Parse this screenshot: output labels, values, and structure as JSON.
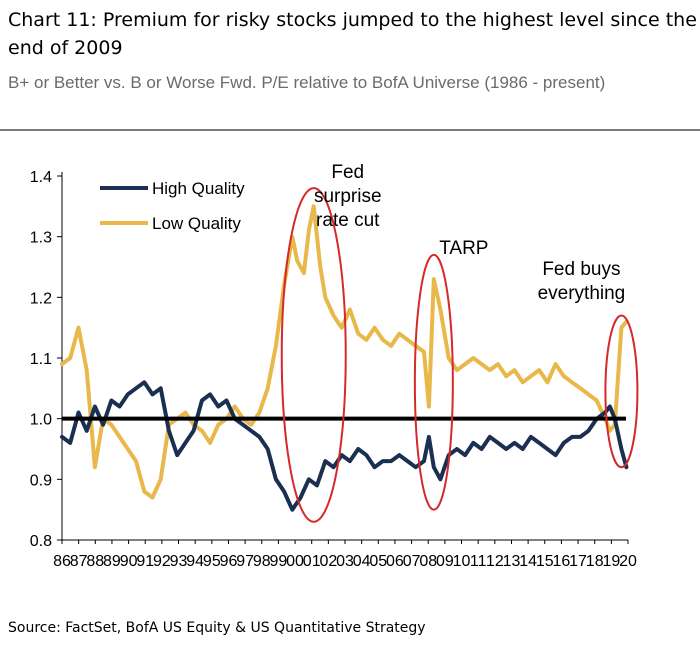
{
  "header": {
    "title": "Chart 11: Premium for risky stocks jumped to the highest level since the end of 2009",
    "subtitle": "B+ or Better vs. B or Worse Fwd. P/E relative to BofA Universe (1986 - present)"
  },
  "footer": {
    "source": "Source: FactSet, BofA US Equity & US Quantitative Strategy"
  },
  "colors": {
    "high_quality": "#1b2f52",
    "low_quality": "#e8b84a",
    "reference_line": "#000000",
    "highlight": "#d42a2a"
  },
  "chart_data": {
    "type": "line",
    "xlabel": "",
    "ylabel": "",
    "ylim": [
      0.8,
      1.4
    ],
    "yticks": [
      "0.8",
      "0.9",
      "1.0",
      "1.1",
      "1.2",
      "1.3",
      "1.4"
    ],
    "x_tick_labels": [
      "86",
      "87",
      "88",
      "89",
      "90",
      "91",
      "92",
      "93",
      "94",
      "95",
      "96",
      "97",
      "98",
      "99",
      "00",
      "01",
      "02",
      "03",
      "04",
      "05",
      "06",
      "07",
      "08",
      "09",
      "10",
      "11",
      "12",
      "13",
      "14",
      "15",
      "16",
      "17",
      "18",
      "19",
      "20"
    ],
    "legend_position": "top-left",
    "reference_line": 1.0,
    "series": [
      {
        "name": "High Quality",
        "x": [
          1986.0,
          1986.5,
          1987.0,
          1987.5,
          1988.0,
          1988.5,
          1989.0,
          1989.5,
          1990.0,
          1990.5,
          1991.0,
          1991.5,
          1992.0,
          1992.5,
          1993.0,
          1993.5,
          1994.0,
          1994.5,
          1995.0,
          1995.5,
          1996.0,
          1996.5,
          1997.0,
          1997.5,
          1998.0,
          1998.5,
          1999.0,
          1999.5,
          2000.0,
          2000.5,
          2001.0,
          2001.5,
          2002.0,
          2002.5,
          2003.0,
          2003.5,
          2004.0,
          2004.5,
          2005.0,
          2005.5,
          2006.0,
          2006.5,
          2007.0,
          2007.5,
          2008.0,
          2008.3,
          2008.6,
          2009.0,
          2009.5,
          2010.0,
          2010.5,
          2011.0,
          2011.5,
          2012.0,
          2012.5,
          2013.0,
          2013.5,
          2014.0,
          2014.5,
          2015.0,
          2015.5,
          2016.0,
          2016.5,
          2017.0,
          2017.5,
          2018.0,
          2018.5,
          2019.0,
          2019.3,
          2019.6,
          2020.0,
          2020.3
        ],
        "values": [
          0.97,
          0.96,
          1.01,
          0.98,
          1.02,
          0.99,
          1.03,
          1.02,
          1.04,
          1.05,
          1.06,
          1.04,
          1.05,
          0.98,
          0.94,
          0.96,
          0.98,
          1.03,
          1.04,
          1.02,
          1.03,
          1.0,
          0.99,
          0.98,
          0.97,
          0.95,
          0.9,
          0.88,
          0.85,
          0.87,
          0.9,
          0.89,
          0.93,
          0.92,
          0.94,
          0.93,
          0.95,
          0.94,
          0.92,
          0.93,
          0.93,
          0.94,
          0.93,
          0.92,
          0.93,
          0.97,
          0.92,
          0.9,
          0.94,
          0.95,
          0.94,
          0.96,
          0.95,
          0.97,
          0.96,
          0.95,
          0.96,
          0.95,
          0.97,
          0.96,
          0.95,
          0.94,
          0.96,
          0.97,
          0.97,
          0.98,
          1.0,
          1.01,
          1.02,
          1.0,
          0.95,
          0.92
        ]
      },
      {
        "name": "Low Quality",
        "x": [
          1986.0,
          1986.5,
          1987.0,
          1987.5,
          1988.0,
          1988.5,
          1989.0,
          1989.5,
          1990.0,
          1990.5,
          1991.0,
          1991.5,
          1992.0,
          1992.5,
          1993.0,
          1993.5,
          1994.0,
          1994.5,
          1995.0,
          1995.5,
          1996.0,
          1996.5,
          1997.0,
          1997.5,
          1998.0,
          1998.5,
          1999.0,
          1999.5,
          2000.0,
          2000.3,
          2000.7,
          2001.0,
          2001.3,
          2001.7,
          2002.0,
          2002.5,
          2003.0,
          2003.5,
          2004.0,
          2004.5,
          2005.0,
          2005.5,
          2006.0,
          2006.5,
          2007.0,
          2007.5,
          2008.0,
          2008.3,
          2008.6,
          2009.0,
          2009.5,
          2010.0,
          2010.5,
          2011.0,
          2011.5,
          2012.0,
          2012.5,
          2013.0,
          2013.5,
          2014.0,
          2014.5,
          2015.0,
          2015.5,
          2016.0,
          2016.5,
          2017.0,
          2017.5,
          2018.0,
          2018.5,
          2019.0,
          2019.3,
          2019.6,
          2020.0,
          2020.3
        ],
        "values": [
          1.09,
          1.1,
          1.15,
          1.08,
          0.92,
          1.0,
          0.99,
          0.97,
          0.95,
          0.93,
          0.88,
          0.87,
          0.9,
          0.99,
          1.0,
          1.01,
          0.99,
          0.98,
          0.96,
          0.99,
          1.0,
          1.02,
          1.0,
          0.99,
          1.01,
          1.05,
          1.12,
          1.22,
          1.3,
          1.26,
          1.24,
          1.31,
          1.35,
          1.25,
          1.2,
          1.17,
          1.15,
          1.18,
          1.14,
          1.13,
          1.15,
          1.13,
          1.12,
          1.14,
          1.13,
          1.12,
          1.11,
          1.02,
          1.23,
          1.18,
          1.1,
          1.08,
          1.09,
          1.1,
          1.09,
          1.08,
          1.09,
          1.07,
          1.08,
          1.06,
          1.07,
          1.08,
          1.06,
          1.09,
          1.07,
          1.06,
          1.05,
          1.04,
          1.03,
          1.0,
          0.98,
          0.99,
          1.15,
          1.16
        ]
      }
    ],
    "annotations": [
      {
        "label": [
          "Fed",
          "surprise",
          "rate cut"
        ],
        "center_x": 2001.3,
        "y_range": [
          0.83,
          1.38
        ]
      },
      {
        "label": [
          "TARP"
        ],
        "center_x": 2008.6,
        "y_range": [
          0.85,
          1.27
        ]
      },
      {
        "label": [
          "Fed buys",
          "everything"
        ],
        "center_x": 2020.0,
        "y_range": [
          0.92,
          1.17
        ]
      }
    ]
  }
}
